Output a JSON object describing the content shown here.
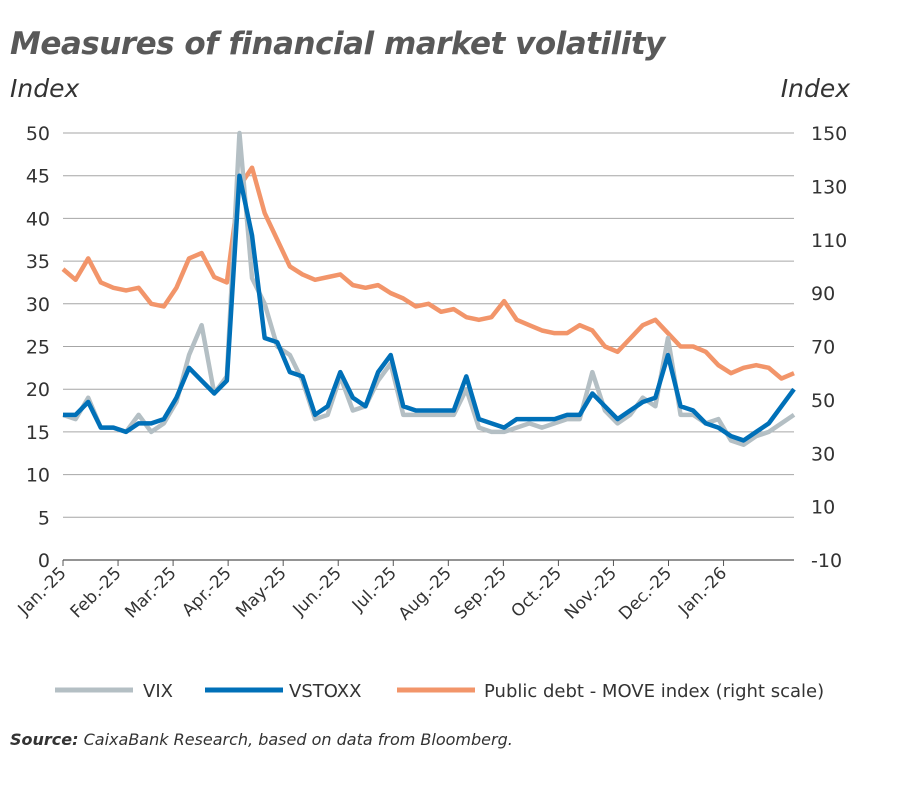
{
  "chart_data": {
    "type": "line",
    "title": "Measures of financial market volatility",
    "ylabel": "Index",
    "ylabel_right": "Index",
    "ylim": [
      0,
      50
    ],
    "ylim_right": [
      -10,
      150
    ],
    "yticks": [
      "0",
      "5",
      "10",
      "15",
      "20",
      "25",
      "30",
      "35",
      "40",
      "45",
      "50"
    ],
    "yticks_right": [
      "-10",
      "10",
      "30",
      "50",
      "70",
      "90",
      "110",
      "130",
      "150"
    ],
    "xticks": [
      "Jan.-25",
      "Feb.-25",
      "Mar.-25",
      "Apr.-25",
      "May-25",
      "Jun.-25",
      "Jul.-25",
      "Aug.-25",
      "Sep.-25",
      "Oct.-25",
      "Nov.-25",
      "Dec.-25",
      "Jan.-26"
    ],
    "x_weeks_from_jan25": 59,
    "grid": true,
    "legend_position": "bottom",
    "series": [
      {
        "name": "VIX",
        "color": "#b4bfc4",
        "axis": "left",
        "values": [
          17,
          16.5,
          19,
          15.5,
          15.5,
          15,
          17,
          15,
          16,
          18.5,
          24,
          27.5,
          19.5,
          21.5,
          50,
          33,
          30,
          25,
          24,
          21,
          16.5,
          17,
          21.5,
          17.5,
          18,
          21,
          23,
          17,
          17,
          17,
          17,
          17,
          20,
          15.5,
          15,
          15,
          15.5,
          16,
          15.5,
          16,
          16.5,
          16.5,
          22,
          17.5,
          16,
          17,
          19,
          18,
          26,
          17,
          17,
          16,
          16.5,
          14,
          13.5,
          14.5,
          15,
          16,
          17
        ]
      },
      {
        "name": "VSTOXX",
        "color": "#0070b8",
        "axis": "left",
        "values": [
          17,
          17,
          18.5,
          15.5,
          15.5,
          15,
          16,
          16,
          16.5,
          19,
          22.5,
          21,
          19.5,
          21,
          45,
          38,
          26,
          25.5,
          22,
          21.5,
          17,
          18,
          22,
          19,
          18,
          22,
          24,
          18,
          17.5,
          17.5,
          17.5,
          17.5,
          21.5,
          16.5,
          16,
          15.5,
          16.5,
          16.5,
          16.5,
          16.5,
          17,
          17,
          19.5,
          18,
          16.5,
          17.5,
          18.5,
          19,
          24,
          18,
          17.5,
          16,
          15.5,
          14.5,
          14,
          15,
          16,
          18,
          20
        ]
      },
      {
        "name": "Public debt - MOVE index (right scale)",
        "color": "#f2956a",
        "axis": "right",
        "values": [
          99,
          95,
          103,
          94,
          92,
          91,
          92,
          86,
          85,
          92,
          103,
          105,
          96,
          94,
          130,
          137,
          120,
          110,
          100,
          97,
          95,
          96,
          97,
          93,
          92,
          93,
          90,
          88,
          85,
          86,
          83,
          84,
          81,
          80,
          81,
          87,
          80,
          78,
          76,
          75,
          75,
          78,
          76,
          70,
          68,
          73,
          78,
          80,
          75,
          70,
          70,
          68,
          63,
          60,
          62,
          63,
          62,
          58,
          60
        ]
      }
    ]
  },
  "source_label": "Source:",
  "source_text": " CaixaBank Research, based on data from Bloomberg."
}
